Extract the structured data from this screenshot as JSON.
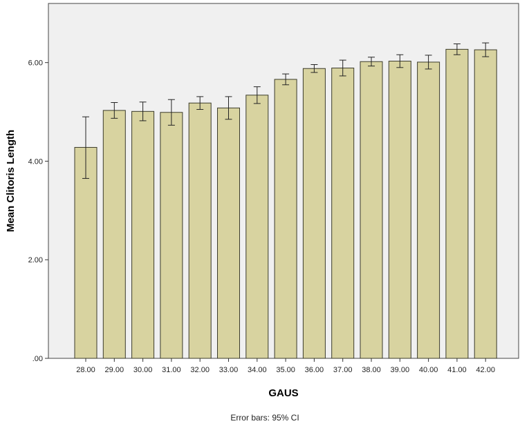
{
  "chart_data": {
    "type": "bar",
    "xlabel": "GAUS",
    "ylabel": "Mean Clitoris Length",
    "footnote": "Error bars: 95% CI",
    "ylim": [
      0,
      7.2
    ],
    "y_ticks": [
      0,
      2,
      4,
      6
    ],
    "y_tick_labels": [
      ".00",
      "2.00",
      "4.00",
      "6.00"
    ],
    "categories": [
      "28.00",
      "29.00",
      "30.00",
      "31.00",
      "32.00",
      "33.00",
      "34.00",
      "35.00",
      "36.00",
      "37.00",
      "38.00",
      "39.00",
      "40.00",
      "41.00",
      "42.00"
    ],
    "values": [
      4.28,
      5.03,
      5.01,
      4.99,
      5.18,
      5.08,
      5.34,
      5.66,
      5.88,
      5.89,
      6.02,
      6.03,
      6.01,
      6.27,
      6.26
    ],
    "ci_lower": [
      3.65,
      4.87,
      4.82,
      4.73,
      5.05,
      4.85,
      5.17,
      5.55,
      5.8,
      5.73,
      5.93,
      5.9,
      5.87,
      6.16,
      6.12
    ],
    "ci_upper": [
      4.9,
      5.19,
      5.2,
      5.25,
      5.31,
      5.31,
      5.51,
      5.77,
      5.96,
      6.05,
      6.11,
      6.16,
      6.15,
      6.38,
      6.4
    ],
    "grid": false,
    "colors": {
      "bar_fill": "#d8d3a0",
      "bar_stroke": "#3a3a2a",
      "plot_background": "#f0f0f0",
      "error_bar": "#222222"
    }
  }
}
